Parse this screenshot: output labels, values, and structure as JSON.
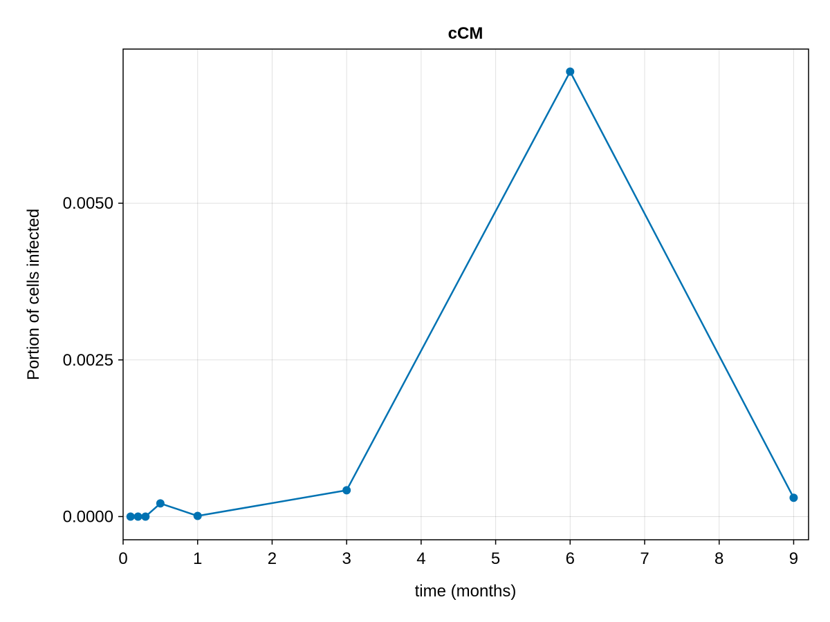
{
  "chart_data": {
    "type": "line",
    "title": "cCM",
    "xlabel": "time (months)",
    "ylabel": "Portion of cells infected",
    "xlim": [
      0,
      9.2
    ],
    "ylim": [
      -0.00037,
      0.00746
    ],
    "x_ticks": [
      0,
      1,
      2,
      3,
      4,
      5,
      6,
      7,
      8,
      9
    ],
    "x_tick_labels": [
      "0",
      "1",
      "2",
      "3",
      "4",
      "5",
      "6",
      "7",
      "8",
      "9"
    ],
    "y_ticks": [
      0.0,
      0.0025,
      0.005
    ],
    "y_tick_labels": [
      "0.0000",
      "0.0025",
      "0.0050"
    ],
    "grid": true,
    "legend": "none",
    "series": [
      {
        "color": "#0072b2",
        "marker": "circle",
        "x": [
          0.1,
          0.2,
          0.3,
          0.5,
          1,
          3,
          6,
          9
        ],
        "y": [
          0.0,
          0.0,
          0.0,
          0.00021,
          1e-05,
          0.00042,
          0.0071,
          0.0003
        ]
      }
    ]
  }
}
